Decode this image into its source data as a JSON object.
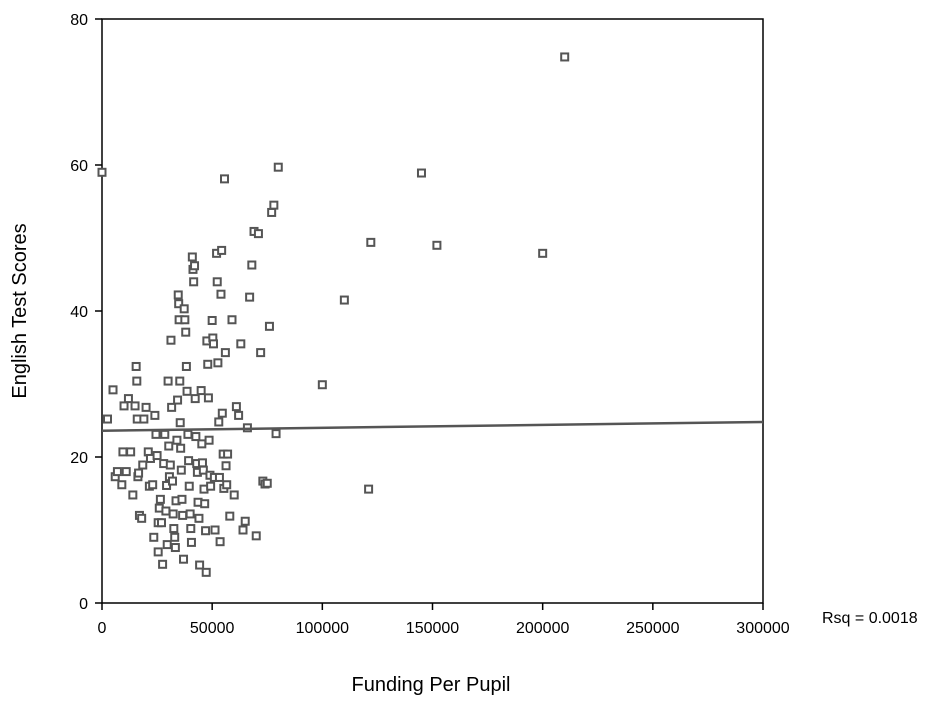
{
  "chart_data": {
    "type": "scatter",
    "title": "",
    "xlabel": "Funding Per Pupil",
    "ylabel": "English Test Scores",
    "xlim": [
      0,
      300000
    ],
    "ylim": [
      0,
      80
    ],
    "x_ticks": [
      0,
      50000,
      100000,
      150000,
      200000,
      250000,
      300000
    ],
    "x_tick_labels": [
      "0",
      "50000",
      "100000",
      "150000",
      "200000",
      "250000",
      "300000"
    ],
    "y_ticks": [
      0,
      20,
      40,
      60,
      80
    ],
    "y_tick_labels": [
      "0",
      "20",
      "40",
      "60",
      "80"
    ],
    "grid": false,
    "marker": "open-square",
    "marker_color": "#555555",
    "fit_line": {
      "x": [
        0,
        300000
      ],
      "y": [
        23.6,
        24.8
      ],
      "color": "#555555"
    },
    "annotation": "Rsq = 0.0018",
    "points": [
      [
        0,
        59
      ],
      [
        2500,
        25.2
      ],
      [
        5000,
        29.2
      ],
      [
        6000,
        17.3
      ],
      [
        7000,
        18
      ],
      [
        9000,
        16.2
      ],
      [
        9500,
        20.7
      ],
      [
        10000,
        27
      ],
      [
        11000,
        18
      ],
      [
        12000,
        28
      ],
      [
        13000,
        20.7
      ],
      [
        14000,
        14.8
      ],
      [
        15000,
        27
      ],
      [
        15500,
        32.4
      ],
      [
        15800,
        30.4
      ],
      [
        16000,
        25.2
      ],
      [
        16300,
        17.3
      ],
      [
        16600,
        17.8
      ],
      [
        17000,
        12
      ],
      [
        18000,
        11.6
      ],
      [
        18500,
        18.9
      ],
      [
        19000,
        25.2
      ],
      [
        20000,
        26.8
      ],
      [
        21000,
        20.7
      ],
      [
        21500,
        16
      ],
      [
        22000,
        19.8
      ],
      [
        23000,
        16.2
      ],
      [
        23500,
        9
      ],
      [
        24000,
        25.7
      ],
      [
        24500,
        23.1
      ],
      [
        25000,
        20.2
      ],
      [
        25500,
        11
      ],
      [
        25500,
        7
      ],
      [
        26000,
        13
      ],
      [
        26500,
        14.2
      ],
      [
        27000,
        11
      ],
      [
        27500,
        5.3
      ],
      [
        28000,
        19.1
      ],
      [
        28500,
        23.1
      ],
      [
        29000,
        12.6
      ],
      [
        29300,
        16.1
      ],
      [
        29600,
        8
      ],
      [
        30000,
        30.4
      ],
      [
        30300,
        21.5
      ],
      [
        30600,
        17.3
      ],
      [
        31000,
        18.9
      ],
      [
        31300,
        36
      ],
      [
        31600,
        26.8
      ],
      [
        32000,
        16.7
      ],
      [
        32300,
        12.2
      ],
      [
        32600,
        10.2
      ],
      [
        33000,
        9
      ],
      [
        33300,
        7.6
      ],
      [
        33600,
        14
      ],
      [
        34000,
        22.3
      ],
      [
        34300,
        27.8
      ],
      [
        34600,
        42.2
      ],
      [
        34800,
        41
      ],
      [
        35000,
        38.8
      ],
      [
        35300,
        30.4
      ],
      [
        35500,
        24.7
      ],
      [
        35700,
        21.2
      ],
      [
        36000,
        18.2
      ],
      [
        36300,
        14.2
      ],
      [
        36600,
        12
      ],
      [
        37000,
        6
      ],
      [
        37300,
        40.3
      ],
      [
        37600,
        38.8
      ],
      [
        38000,
        37.1
      ],
      [
        38300,
        32.4
      ],
      [
        38600,
        29
      ],
      [
        39000,
        23.1
      ],
      [
        39300,
        19.5
      ],
      [
        39600,
        16
      ],
      [
        40000,
        12.2
      ],
      [
        40300,
        10.2
      ],
      [
        40600,
        8.3
      ],
      [
        41000,
        47.4
      ],
      [
        41300,
        45.7
      ],
      [
        41600,
        44
      ],
      [
        42000,
        46.2
      ],
      [
        42300,
        28
      ],
      [
        42600,
        22.8
      ],
      [
        43000,
        19.1
      ],
      [
        43300,
        17.9
      ],
      [
        43600,
        13.8
      ],
      [
        44000,
        11.6
      ],
      [
        44300,
        5.2
      ],
      [
        45000,
        29.1
      ],
      [
        45300,
        21.8
      ],
      [
        45600,
        19.2
      ],
      [
        46000,
        18.2
      ],
      [
        46300,
        15.6
      ],
      [
        46600,
        13.6
      ],
      [
        47000,
        9.9
      ],
      [
        47300,
        4.2
      ],
      [
        47600,
        35.9
      ],
      [
        48000,
        32.7
      ],
      [
        48300,
        28.1
      ],
      [
        48600,
        22.3
      ],
      [
        49000,
        17.5
      ],
      [
        49300,
        16
      ],
      [
        50000,
        38.7
      ],
      [
        50300,
        36.3
      ],
      [
        50600,
        35.5
      ],
      [
        51000,
        17.2
      ],
      [
        51300,
        10
      ],
      [
        52000,
        47.9
      ],
      [
        52300,
        44
      ],
      [
        52600,
        32.9
      ],
      [
        53000,
        24.8
      ],
      [
        53300,
        17.2
      ],
      [
        53600,
        8.4
      ],
      [
        54000,
        42.3
      ],
      [
        54300,
        48.3
      ],
      [
        54600,
        26
      ],
      [
        55000,
        20.4
      ],
      [
        55300,
        15.7
      ],
      [
        55600,
        58.1
      ],
      [
        56000,
        34.3
      ],
      [
        56300,
        18.8
      ],
      [
        56600,
        16.2
      ],
      [
        57000,
        20.4
      ],
      [
        58000,
        11.9
      ],
      [
        59000,
        38.8
      ],
      [
        60000,
        14.8
      ],
      [
        61000,
        26.9
      ],
      [
        62000,
        25.7
      ],
      [
        63000,
        35.5
      ],
      [
        64000,
        10
      ],
      [
        65000,
        11.2
      ],
      [
        66000,
        24
      ],
      [
        67000,
        41.9
      ],
      [
        68000,
        46.3
      ],
      [
        69000,
        50.9
      ],
      [
        70000,
        9.2
      ],
      [
        71000,
        50.6
      ],
      [
        72000,
        34.3
      ],
      [
        73000,
        16.7
      ],
      [
        74000,
        16.3
      ],
      [
        75000,
        16.4
      ],
      [
        76000,
        37.9
      ],
      [
        77000,
        53.5
      ],
      [
        78000,
        54.5
      ],
      [
        79000,
        23.2
      ],
      [
        80000,
        59.7
      ],
      [
        100000,
        29.9
      ],
      [
        110000,
        41.5
      ],
      [
        121000,
        15.6
      ],
      [
        122000,
        49.4
      ],
      [
        145000,
        58.9
      ],
      [
        152000,
        49
      ],
      [
        200000,
        47.9
      ],
      [
        210000,
        74.8
      ]
    ]
  }
}
